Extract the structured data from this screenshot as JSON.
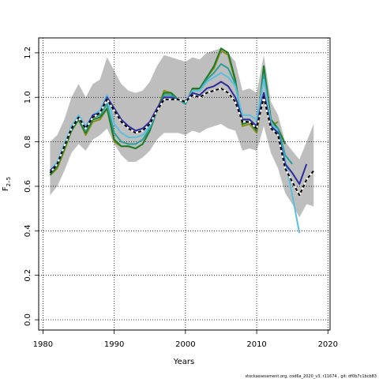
{
  "chart_data": {
    "type": "line",
    "xlabel": "Years",
    "ylabel": "F",
    "ylabel_subscript": "2–5",
    "footnote": "stockassessment.org, cod6a_2020_v3, r11674 , git: df0b7c1bcb83",
    "x": [
      1981,
      1982,
      1983,
      1984,
      1985,
      1986,
      1987,
      1988,
      1989,
      1990,
      1991,
      1992,
      1993,
      1994,
      1995,
      1996,
      1997,
      1998,
      1999,
      2000,
      2001,
      2002,
      2003,
      2004,
      2005,
      2006,
      2007,
      2008,
      2009,
      2010,
      2011,
      2012,
      2013,
      2014,
      2015,
      2016,
      2017,
      2018
    ],
    "band": {
      "color": "#bebebe",
      "upper": [
        0.8,
        0.83,
        0.9,
        1.0,
        1.06,
        1.0,
        1.06,
        1.08,
        1.18,
        1.12,
        1.06,
        1.03,
        1.02,
        1.03,
        1.07,
        1.14,
        1.19,
        1.18,
        1.17,
        1.16,
        1.18,
        1.17,
        1.2,
        1.21,
        1.22,
        1.2,
        1.16,
        1.03,
        1.04,
        1.02,
        1.19,
        0.98,
        0.92,
        0.8,
        0.76,
        0.72,
        0.8,
        0.88
      ],
      "lower": [
        0.56,
        0.6,
        0.67,
        0.75,
        0.79,
        0.76,
        0.81,
        0.83,
        0.86,
        0.79,
        0.74,
        0.71,
        0.71,
        0.73,
        0.76,
        0.81,
        0.84,
        0.84,
        0.84,
        0.83,
        0.85,
        0.84,
        0.86,
        0.87,
        0.88,
        0.86,
        0.85,
        0.76,
        0.77,
        0.76,
        0.87,
        0.75,
        0.68,
        0.57,
        0.52,
        0.46,
        0.52,
        0.51
      ]
    },
    "series": [
      {
        "color": "#8a8f1a",
        "values": [
          0.65,
          0.68,
          0.76,
          0.85,
          0.9,
          0.83,
          0.89,
          0.9,
          0.95,
          0.8,
          0.78,
          0.78,
          0.77,
          0.79,
          0.85,
          0.94,
          1.03,
          1.02,
          0.99,
          0.97,
          1.04,
          1.03,
          1.09,
          1.13,
          1.21,
          1.19,
          1.07,
          0.87,
          0.88,
          0.84,
          1.02,
          0.87,
          0.89,
          null,
          null,
          null,
          null,
          null
        ]
      },
      {
        "color": "#1d7a2a",
        "values": [
          0.65,
          0.69,
          0.77,
          0.85,
          0.9,
          0.84,
          0.9,
          0.91,
          0.95,
          0.81,
          0.78,
          0.78,
          0.77,
          0.79,
          0.85,
          0.94,
          1.02,
          1.02,
          0.99,
          0.97,
          1.04,
          1.04,
          1.09,
          1.14,
          1.22,
          1.2,
          1.08,
          0.88,
          0.89,
          0.85,
          1.14,
          0.9,
          0.86,
          0.79,
          null,
          null,
          null,
          null
        ]
      },
      {
        "color": "#2aa198",
        "values": [
          0.66,
          0.7,
          0.78,
          0.86,
          0.91,
          0.85,
          0.91,
          0.92,
          0.97,
          0.84,
          0.8,
          0.79,
          0.79,
          0.81,
          0.86,
          0.94,
          1.01,
          1.01,
          0.99,
          0.97,
          1.03,
          1.03,
          1.08,
          1.11,
          1.15,
          1.13,
          1.06,
          0.9,
          0.9,
          0.87,
          1.1,
          0.88,
          0.86,
          0.74,
          0.7,
          null,
          null,
          null
        ]
      },
      {
        "color": "#5bbfe0",
        "values": [
          0.67,
          0.71,
          0.79,
          0.87,
          0.92,
          0.87,
          0.92,
          0.94,
          1.01,
          0.88,
          0.84,
          0.82,
          0.82,
          0.83,
          0.87,
          0.94,
          1.0,
          1.0,
          0.99,
          0.98,
          1.03,
          1.03,
          1.07,
          1.09,
          1.11,
          1.09,
          1.05,
          0.92,
          0.92,
          0.9,
          1.08,
          0.89,
          0.84,
          0.72,
          0.56,
          0.39,
          null,
          null
        ]
      },
      {
        "color": "#2c2c9c",
        "values": [
          0.67,
          0.7,
          0.78,
          0.86,
          0.91,
          0.86,
          0.92,
          0.93,
          1.0,
          0.95,
          0.9,
          0.87,
          0.85,
          0.86,
          0.89,
          0.95,
          1.0,
          1.0,
          0.99,
          0.98,
          1.02,
          1.01,
          1.04,
          1.05,
          1.07,
          1.05,
          1.0,
          0.9,
          0.9,
          0.87,
          1.02,
          0.87,
          0.84,
          0.7,
          0.66,
          0.61,
          0.7,
          null
        ]
      },
      {
        "color": "#000000",
        "linestyle": "dashed",
        "values": [
          0.66,
          0.7,
          0.78,
          0.86,
          0.91,
          0.86,
          0.91,
          0.93,
          0.99,
          0.94,
          0.89,
          0.86,
          0.84,
          0.85,
          0.88,
          0.94,
          0.99,
          0.99,
          0.99,
          0.98,
          1.01,
          1.0,
          1.02,
          1.03,
          1.04,
          1.02,
          0.98,
          0.89,
          0.89,
          0.86,
          1.0,
          0.86,
          0.83,
          0.68,
          0.62,
          0.56,
          0.63,
          0.67
        ]
      }
    ],
    "xlim": [
      1979.4,
      2020.3
    ],
    "ylim": [
      -0.046,
      1.267
    ],
    "xticks": [
      1980,
      1990,
      2000,
      2010,
      2020
    ],
    "yticks": [
      {
        "value": 0,
        "label": "0.0"
      },
      0.2,
      0.4,
      0.6,
      0.8,
      {
        "value": 1,
        "label": "1.0"
      },
      1.2
    ],
    "grid": true
  }
}
